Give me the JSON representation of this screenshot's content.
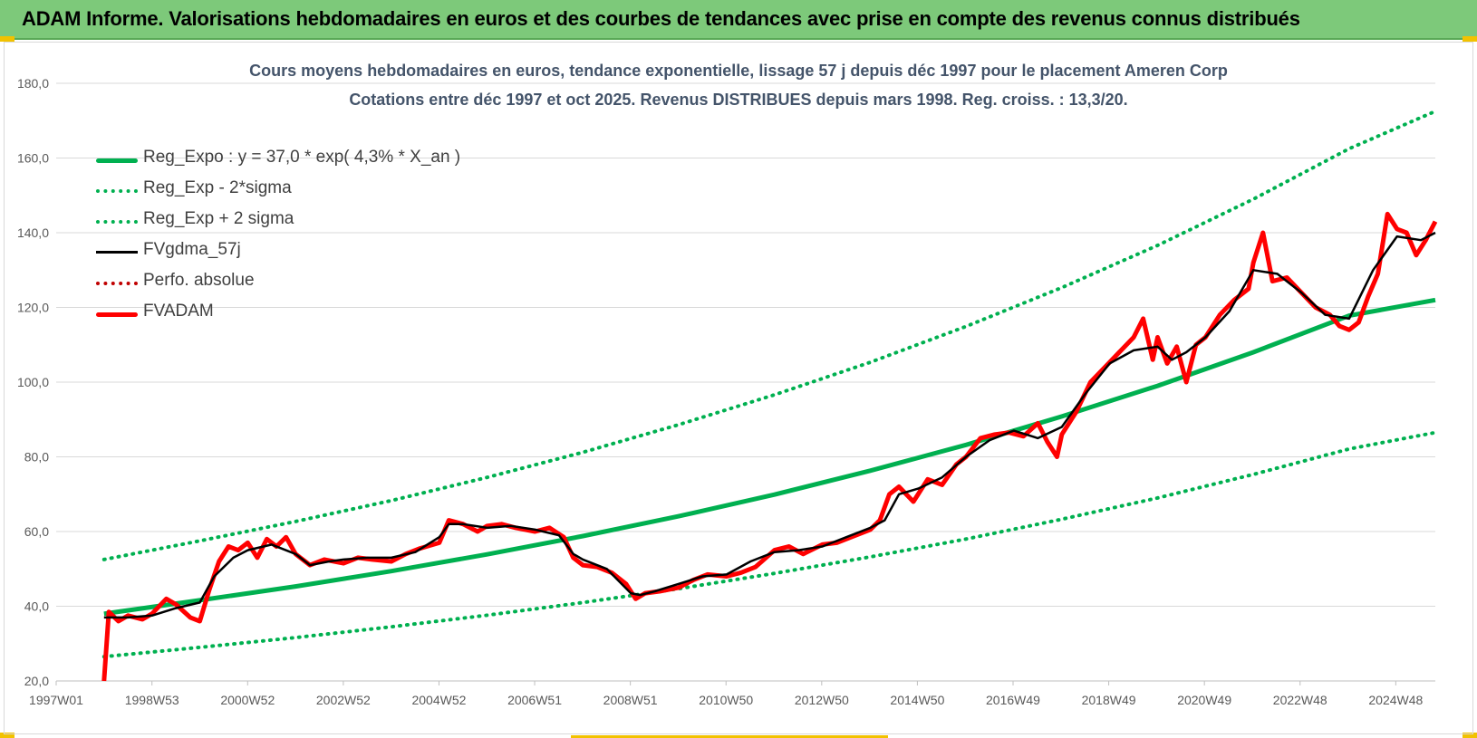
{
  "header": {
    "title": "ADAM Informe. Valorisations hebdomadaires en euros et des courbes de tendances avec prise en compte des revenus connus distribués"
  },
  "colors": {
    "banner": "#7dc97a",
    "reg_expo": "#00b050",
    "fv_gdma": "#000000",
    "perfo": "#c00000",
    "fvadam": "#ff0000"
  },
  "chart_data": {
    "type": "line",
    "title": "Cours moyens hebdomadaires en euros, tendance exponentielle, lissage 57 j depuis déc 1997 pour le placement Ameren Corp",
    "subtitle": "Cotations entre déc 1997 et oct 2025. Revenus DISTRIBUES depuis mars 1998. Reg. croiss. : 13,3/20.",
    "ylim": [
      20,
      180
    ],
    "yticks": [
      "20,0",
      "40,0",
      "60,0",
      "80,0",
      "100,0",
      "120,0",
      "140,0",
      "160,0",
      "180,0"
    ],
    "xticks": [
      "1997W01",
      "1998W53",
      "2000W52",
      "2002W52",
      "2004W52",
      "2006W51",
      "2008W51",
      "2010W50",
      "2012W50",
      "2014W50",
      "2016W49",
      "2018W49",
      "2020W49",
      "2022W48",
      "2024W48"
    ],
    "x_range": [
      1997.0,
      2025.8
    ],
    "legend": [
      {
        "name": "Reg_Expo : y = 37,0 * exp( 4,3% *  X_an )",
        "style": "solid-thick",
        "color": "#00b050"
      },
      {
        "name": "Reg_Exp - 2*sigma",
        "style": "dotted",
        "color": "#00b050"
      },
      {
        "name": "Reg_Exp + 2 sigma",
        "style": "dotted",
        "color": "#00b050"
      },
      {
        "name": "FVgdma_57j",
        "style": "solid",
        "color": "#000000"
      },
      {
        "name": "Perfo. absolue",
        "style": "dotted",
        "color": "#c00000"
      },
      {
        "name": "FVADAM",
        "style": "solid-thick",
        "color": "#ff0000"
      }
    ],
    "series": [
      {
        "name": "Reg_Expo : y = 37,0 * exp( 4,3% *  X_an )",
        "x": [
          1998.0,
          2000.0,
          2002.0,
          2004.0,
          2006.0,
          2008.0,
          2010.0,
          2012.0,
          2014.0,
          2016.0,
          2018.0,
          2020.0,
          2022.0,
          2024.0,
          2025.8
        ],
        "values": [
          38.0,
          41.6,
          45.3,
          49.4,
          53.9,
          58.8,
          64.1,
          69.9,
          76.3,
          83.2,
          90.8,
          99.0,
          108.0,
          117.8,
          122.0
        ]
      },
      {
        "name": "Reg_Exp - 2*sigma",
        "x": [
          1998.0,
          2000.0,
          2002.0,
          2004.0,
          2006.0,
          2008.0,
          2010.0,
          2012.0,
          2014.0,
          2016.0,
          2018.0,
          2020.0,
          2022.0,
          2024.0,
          2025.8
        ],
        "values": [
          26.5,
          29.0,
          31.6,
          34.5,
          37.6,
          41.0,
          44.7,
          48.8,
          53.2,
          58.0,
          63.3,
          69.0,
          75.3,
          82.1,
          86.5
        ]
      },
      {
        "name": "Reg_Exp + 2 sigma",
        "x": [
          1998.0,
          2000.0,
          2002.0,
          2004.0,
          2006.0,
          2008.0,
          2010.0,
          2012.0,
          2014.0,
          2016.0,
          2018.0,
          2020.0,
          2022.0,
          2024.0,
          2025.8
        ],
        "values": [
          52.5,
          57.5,
          62.7,
          68.3,
          74.5,
          81.2,
          88.6,
          96.6,
          105.3,
          114.9,
          125.3,
          136.6,
          149.0,
          162.5,
          172.5
        ]
      },
      {
        "name": "FVgdma_57j",
        "x": [
          1998.0,
          1998.5,
          1999.0,
          1999.5,
          2000.0,
          2000.3,
          2000.7,
          2001.0,
          2001.5,
          2002.0,
          2002.3,
          2002.7,
          2003.0,
          2003.5,
          2004.0,
          2004.5,
          2005.0,
          2005.2,
          2005.5,
          2006.0,
          2006.5,
          2007.0,
          2007.5,
          2007.8,
          2008.0,
          2008.5,
          2009.0,
          2009.2,
          2009.5,
          2010.0,
          2010.5,
          2011.0,
          2011.5,
          2012.0,
          2012.5,
          2013.0,
          2013.5,
          2014.0,
          2014.3,
          2014.6,
          2015.0,
          2015.5,
          2016.0,
          2016.5,
          2017.0,
          2017.5,
          2018.0,
          2018.5,
          2019.0,
          2019.5,
          2020.0,
          2020.3,
          2020.6,
          2021.0,
          2021.5,
          2022.0,
          2022.5,
          2023.0,
          2023.5,
          2024.0,
          2024.5,
          2025.0,
          2025.5,
          2025.8
        ],
        "values": [
          37.0,
          37.0,
          37.5,
          39.5,
          41.0,
          48.0,
          53.0,
          55.0,
          56.5,
          54.0,
          51.0,
          52.0,
          52.5,
          53.0,
          53.0,
          54.5,
          58.5,
          62.0,
          62.0,
          61.0,
          61.5,
          60.5,
          59.0,
          54.0,
          52.5,
          50.0,
          43.5,
          43.0,
          44.0,
          46.0,
          48.0,
          48.5,
          52.0,
          54.5,
          55.0,
          56.0,
          58.5,
          61.0,
          63.0,
          70.0,
          71.5,
          74.5,
          80.0,
          84.5,
          87.0,
          85.0,
          88.0,
          97.0,
          105.0,
          108.5,
          109.5,
          106.0,
          108.0,
          112.0,
          119.0,
          130.0,
          129.0,
          124.0,
          118.0,
          117.0,
          130.0,
          139.0,
          138.0,
          140.0
        ]
      },
      {
        "name": "FVADAM",
        "x": [
          1998.0,
          1998.1,
          1998.3,
          1998.5,
          1998.8,
          1999.0,
          1999.3,
          1999.5,
          1999.8,
          2000.0,
          2000.2,
          2000.4,
          2000.6,
          2000.8,
          2001.0,
          2001.2,
          2001.4,
          2001.6,
          2001.8,
          2002.0,
          2002.3,
          2002.6,
          2003.0,
          2003.3,
          2003.6,
          2004.0,
          2004.3,
          2004.6,
          2005.0,
          2005.2,
          2005.5,
          2005.8,
          2006.0,
          2006.3,
          2006.6,
          2007.0,
          2007.3,
          2007.6,
          2007.8,
          2008.0,
          2008.3,
          2008.6,
          2008.9,
          2009.1,
          2009.3,
          2009.6,
          2010.0,
          2010.3,
          2010.6,
          2011.0,
          2011.3,
          2011.6,
          2012.0,
          2012.3,
          2012.6,
          2013.0,
          2013.3,
          2013.6,
          2014.0,
          2014.2,
          2014.4,
          2014.6,
          2014.9,
          2015.2,
          2015.5,
          2015.8,
          2016.0,
          2016.3,
          2016.6,
          2016.9,
          2017.2,
          2017.5,
          2017.7,
          2017.9,
          2018.0,
          2018.3,
          2018.6,
          2018.9,
          2019.2,
          2019.5,
          2019.7,
          2019.9,
          2020.0,
          2020.2,
          2020.4,
          2020.6,
          2020.8,
          2021.0,
          2021.3,
          2021.6,
          2021.9,
          2022.0,
          2022.2,
          2022.4,
          2022.7,
          2023.0,
          2023.3,
          2023.6,
          2023.8,
          2024.0,
          2024.2,
          2024.4,
          2024.6,
          2024.8,
          2025.0,
          2025.2,
          2025.4,
          2025.6,
          2025.8
        ],
        "values": [
          20.0,
          38.5,
          36.0,
          37.5,
          36.5,
          38.0,
          42.0,
          40.5,
          37.0,
          36.0,
          44.5,
          52.0,
          56.0,
          55.0,
          57.0,
          53.0,
          58.0,
          56.0,
          58.5,
          54.0,
          51.0,
          52.5,
          51.5,
          53.0,
          52.5,
          52.0,
          54.0,
          55.5,
          57.0,
          63.0,
          62.0,
          60.0,
          61.5,
          62.0,
          61.0,
          60.0,
          61.0,
          58.5,
          53.0,
          51.0,
          50.5,
          49.0,
          46.0,
          42.0,
          43.5,
          44.0,
          45.0,
          47.0,
          48.5,
          48.0,
          49.0,
          50.5,
          55.0,
          56.0,
          54.0,
          56.5,
          57.0,
          58.5,
          60.5,
          63.0,
          70.0,
          72.0,
          68.0,
          74.0,
          72.5,
          78.0,
          80.0,
          85.0,
          86.0,
          86.5,
          85.5,
          89.0,
          84.0,
          80.0,
          86.0,
          92.0,
          100.0,
          104.0,
          108.0,
          112.0,
          117.0,
          106.0,
          112.0,
          105.0,
          109.5,
          100.0,
          110.0,
          112.0,
          118.0,
          122.0,
          125.0,
          132.0,
          140.0,
          127.0,
          128.0,
          124.0,
          120.0,
          118.0,
          115.0,
          114.0,
          116.0,
          123.0,
          129.0,
          145.0,
          141.0,
          140.0,
          134.0,
          138.0,
          143.0
        ]
      }
    ]
  }
}
